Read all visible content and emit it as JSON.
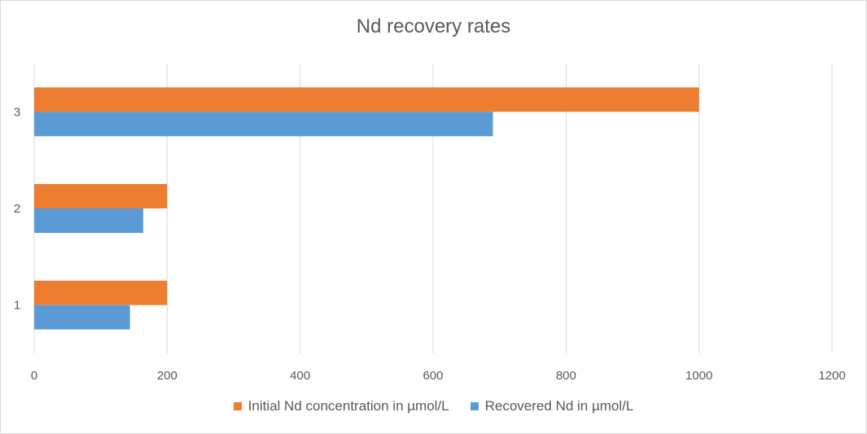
{
  "chart_data": {
    "type": "bar",
    "orientation": "horizontal",
    "title": "Nd recovery rates",
    "categories": [
      "1",
      "2",
      "3"
    ],
    "series": [
      {
        "name": "Initial Nd concentration in µmol/L",
        "color": "#ED7D31",
        "values": [
          200,
          200,
          1000
        ]
      },
      {
        "name": "Recovered Nd in µmol/L",
        "color": "#5B9BD5",
        "values": [
          144,
          164,
          690
        ]
      }
    ],
    "xlim": [
      0,
      1200
    ],
    "xticks": [
      0,
      200,
      400,
      600,
      800,
      1000,
      1200
    ],
    "grid": true,
    "legend_position": "bottom"
  }
}
